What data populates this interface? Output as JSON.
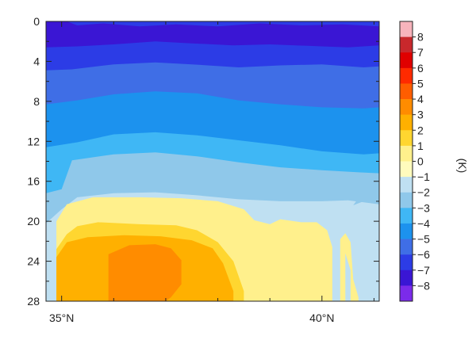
{
  "chart_data": {
    "type": "heatmap",
    "title": "",
    "xlabel": "",
    "ylabel": "",
    "x_ticks": [
      {
        "value": 35,
        "label": "35°N"
      },
      {
        "value": 40,
        "label": "40°N"
      }
    ],
    "xlim": [
      34.7,
      41.1
    ],
    "y_ticks": [
      0,
      4,
      8,
      12,
      16,
      20,
      24,
      28
    ],
    "ylim": [
      0,
      28
    ],
    "y_inverted": true,
    "colorbar": {
      "unit": "(K)",
      "labels": [
        "8",
        "7",
        "6",
        "5",
        "4",
        "3",
        "2",
        "1",
        "0",
        "−1",
        "−2",
        "−3",
        "−4",
        "−5",
        "−6",
        "−7",
        "−8"
      ],
      "colors": [
        "#f7b4bc",
        "#c8282c",
        "#e00000",
        "#ff2a00",
        "#ff5d00",
        "#ff8c00",
        "#ffb000",
        "#ffd630",
        "#fff08c",
        "#fffbbd",
        "#bfe0f2",
        "#8fc8ea",
        "#3fb7f5",
        "#1c92ee",
        "#3f6ee6",
        "#2c3ce6",
        "#3a16d4",
        "#7b2bea"
      ]
    },
    "contours": [
      {
        "level": "-7",
        "color": "#2c3ce6",
        "boundary": [
          [
            34.7,
            2.6
          ],
          [
            35.3,
            2.5
          ],
          [
            36.0,
            2.3
          ],
          [
            36.8,
            2.0
          ],
          [
            37.5,
            2.2
          ],
          [
            38.3,
            2.4
          ],
          [
            39.0,
            2.3
          ],
          [
            40.0,
            2.5
          ],
          [
            40.5,
            2.6
          ],
          [
            41.1,
            2.4
          ]
        ]
      },
      {
        "level": "-6",
        "color": "#3f6ee6",
        "boundary": [
          [
            34.7,
            4.9
          ],
          [
            35.2,
            4.8
          ],
          [
            36.0,
            4.3
          ],
          [
            36.8,
            4.1
          ],
          [
            37.5,
            4.3
          ],
          [
            38.4,
            4.6
          ],
          [
            39.2,
            4.4
          ],
          [
            40.0,
            4.3
          ],
          [
            40.8,
            4.6
          ],
          [
            41.1,
            4.5
          ]
        ]
      },
      {
        "level": "-5",
        "color": "#1c92ee",
        "boundary": [
          [
            34.7,
            8.3
          ],
          [
            35.3,
            7.9
          ],
          [
            36.0,
            7.3
          ],
          [
            36.8,
            7.0
          ],
          [
            37.6,
            7.2
          ],
          [
            38.4,
            7.9
          ],
          [
            39.2,
            8.3
          ],
          [
            40.0,
            8.6
          ],
          [
            40.8,
            8.7
          ],
          [
            41.1,
            8.6
          ]
        ]
      },
      {
        "level": "-4",
        "color": "#3fb7f5",
        "boundary": [
          [
            34.7,
            12.6
          ],
          [
            35.3,
            12.1
          ],
          [
            36.0,
            11.3
          ],
          [
            36.8,
            11.1
          ],
          [
            37.6,
            11.4
          ],
          [
            38.4,
            11.9
          ],
          [
            39.2,
            12.4
          ],
          [
            40.0,
            13.0
          ],
          [
            40.8,
            13.3
          ],
          [
            41.1,
            13.2
          ]
        ]
      },
      {
        "level": "-3",
        "color": "#8fc8ea",
        "boundary": [
          [
            34.7,
            17.2
          ],
          [
            35.0,
            16.8
          ],
          [
            35.2,
            13.9
          ],
          [
            36.0,
            13.3
          ],
          [
            36.8,
            13.1
          ],
          [
            37.6,
            13.5
          ],
          [
            38.4,
            14.1
          ],
          [
            39.2,
            14.6
          ],
          [
            40.0,
            14.9
          ],
          [
            40.7,
            15.1
          ],
          [
            41.1,
            15.2
          ]
        ]
      },
      {
        "level": "-2",
        "color": "#bfe0f2",
        "boundary": [
          [
            34.7,
            20.2
          ],
          [
            35.0,
            18.8
          ],
          [
            35.3,
            17.6
          ],
          [
            36.0,
            17.2
          ],
          [
            36.8,
            17.1
          ],
          [
            37.6,
            17.4
          ],
          [
            38.4,
            17.8
          ],
          [
            39.2,
            18.0
          ],
          [
            40.0,
            18.0
          ],
          [
            40.5,
            17.9
          ],
          [
            41.1,
            18.3
          ]
        ]
      },
      {
        "level": "0",
        "color": "#fff08c",
        "boundary": [
          [
            34.9,
            28.0
          ],
          [
            34.9,
            20.0
          ],
          [
            35.1,
            18.3
          ],
          [
            35.6,
            17.6
          ],
          [
            36.5,
            17.6
          ],
          [
            37.3,
            17.7
          ],
          [
            38.0,
            18.0
          ],
          [
            38.5,
            18.8
          ],
          [
            38.7,
            19.9
          ],
          [
            39.0,
            20.3
          ],
          [
            39.2,
            19.8
          ],
          [
            39.6,
            20.1
          ],
          [
            39.9,
            20.1
          ],
          [
            40.1,
            20.9
          ],
          [
            40.2,
            22.6
          ],
          [
            40.2,
            28.0
          ]
        ]
      },
      {
        "level": "1",
        "color": "#ffd630",
        "boundary": [
          [
            34.9,
            28.0
          ],
          [
            34.9,
            22.8
          ],
          [
            35.1,
            21.3
          ],
          [
            35.3,
            20.5
          ],
          [
            35.7,
            20.1
          ],
          [
            36.5,
            20.3
          ],
          [
            37.2,
            20.4
          ],
          [
            37.6,
            20.9
          ],
          [
            38.0,
            22.1
          ],
          [
            38.3,
            24.0
          ],
          [
            38.5,
            27.0
          ],
          [
            38.5,
            28.0
          ]
        ]
      },
      {
        "level": "2",
        "color": "#ffb000",
        "boundary": [
          [
            34.9,
            28.0
          ],
          [
            34.9,
            23.6
          ],
          [
            35.1,
            22.1
          ],
          [
            35.5,
            21.6
          ],
          [
            36.2,
            21.4
          ],
          [
            36.9,
            21.5
          ],
          [
            37.5,
            21.9
          ],
          [
            37.9,
            22.7
          ],
          [
            38.1,
            24.2
          ],
          [
            38.3,
            27.0
          ],
          [
            38.3,
            28.0
          ]
        ]
      },
      {
        "level": "3",
        "color": "#ff8c00",
        "boundary": [
          [
            35.9,
            28.0
          ],
          [
            35.9,
            23.3
          ],
          [
            36.3,
            22.4
          ],
          [
            36.8,
            22.3
          ],
          [
            37.1,
            22.7
          ],
          [
            37.3,
            23.9
          ],
          [
            37.3,
            26.3
          ],
          [
            37.1,
            27.6
          ],
          [
            37.0,
            28.0
          ]
        ]
      }
    ],
    "overlays": [
      {
        "level": "0",
        "color": "#fff08c",
        "boundary": [
          [
            40.35,
            28.0
          ],
          [
            40.35,
            21.8
          ],
          [
            40.45,
            21.2
          ],
          [
            40.55,
            22.1
          ],
          [
            40.6,
            25.8
          ],
          [
            40.7,
            27.6
          ],
          [
            40.7,
            28.0
          ]
        ]
      },
      {
        "level": "-2",
        "color": "#bfe0f2",
        "boundary": [
          [
            40.45,
            28.0
          ],
          [
            40.45,
            23.2
          ],
          [
            40.55,
            24.9
          ],
          [
            40.55,
            28.0
          ]
        ]
      },
      {
        "level": "-3",
        "color": "#8fc8ea",
        "boundary": [
          [
            40.6,
            18.4
          ],
          [
            40.9,
            17.8
          ],
          [
            41.1,
            18.3
          ],
          [
            41.1,
            17.0
          ],
          [
            40.8,
            17.0
          ]
        ]
      },
      {
        "level": "-7",
        "color": "#2c3ce6",
        "boundary": [
          [
            35.1,
            0.0
          ],
          [
            35.3,
            0.4
          ],
          [
            35.8,
            0.2
          ],
          [
            36.5,
            0.5
          ],
          [
            37.2,
            0.3
          ],
          [
            38.0,
            0.5
          ],
          [
            38.8,
            0.2
          ],
          [
            39.6,
            0.4
          ],
          [
            40.4,
            0.3
          ],
          [
            41.1,
            0.5
          ],
          [
            41.1,
            0.0
          ]
        ]
      }
    ]
  }
}
